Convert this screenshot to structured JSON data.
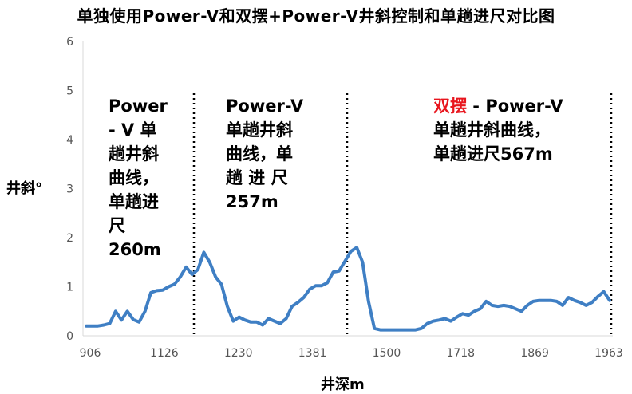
{
  "chart_data": {
    "type": "line",
    "title": "单独使用Power-V和双摆+Power-V井斜控制和单趟进尺对比图",
    "xlabel": "井深m",
    "ylabel": "井斜°",
    "ylim": [
      0,
      6
    ],
    "yticks": [
      "0",
      "1",
      "2",
      "3",
      "4",
      "5",
      "6"
    ],
    "xtick_labels": [
      "906",
      "1126",
      "1230",
      "1381",
      "1500",
      "1718",
      "1869",
      "1963"
    ],
    "grid": false,
    "line_color": "#3f7fc4",
    "highlight_color": "#e8151d",
    "segments": [
      {
        "lines": [
          "Power",
          "- V 单",
          "趟井斜",
          "曲线，",
          "单趟进",
          "尺",
          "260m"
        ]
      },
      {
        "lines": [
          "Power-V",
          "单趟井斜",
          "曲线，单",
          "趟  进  尺",
          "257m"
        ]
      },
      {
        "highlight": "双摆",
        "lines_first_rest": " - Power-V",
        "lines": [
          "单趟井斜曲线，",
          "单趟进尺567m"
        ]
      }
    ],
    "series": [
      {
        "values": [
          0.2,
          0.2,
          0.2,
          0.22,
          0.25,
          0.5,
          0.32,
          0.5,
          0.33,
          0.28,
          0.5,
          0.88,
          0.92,
          0.93,
          1.0,
          1.05,
          1.2,
          1.4,
          1.25,
          1.35,
          1.7,
          1.5,
          1.2,
          1.05,
          0.6,
          0.3,
          0.38,
          0.32,
          0.28,
          0.28,
          0.22,
          0.35,
          0.3,
          0.25,
          0.35,
          0.6,
          0.68,
          0.78,
          0.95,
          1.02,
          1.02,
          1.08,
          1.3,
          1.32,
          1.52,
          1.72,
          1.8,
          1.5,
          0.7,
          0.15,
          0.12,
          0.12,
          0.12,
          0.12,
          0.12,
          0.12,
          0.12,
          0.15,
          0.25,
          0.3,
          0.32,
          0.35,
          0.3,
          0.38,
          0.45,
          0.42,
          0.5,
          0.55,
          0.7,
          0.62,
          0.6,
          0.62,
          0.6,
          0.55,
          0.5,
          0.62,
          0.7,
          0.72,
          0.72,
          0.72,
          0.7,
          0.62,
          0.78,
          0.72,
          0.68,
          0.62,
          0.68,
          0.8,
          0.9,
          0.72
        ]
      }
    ]
  }
}
